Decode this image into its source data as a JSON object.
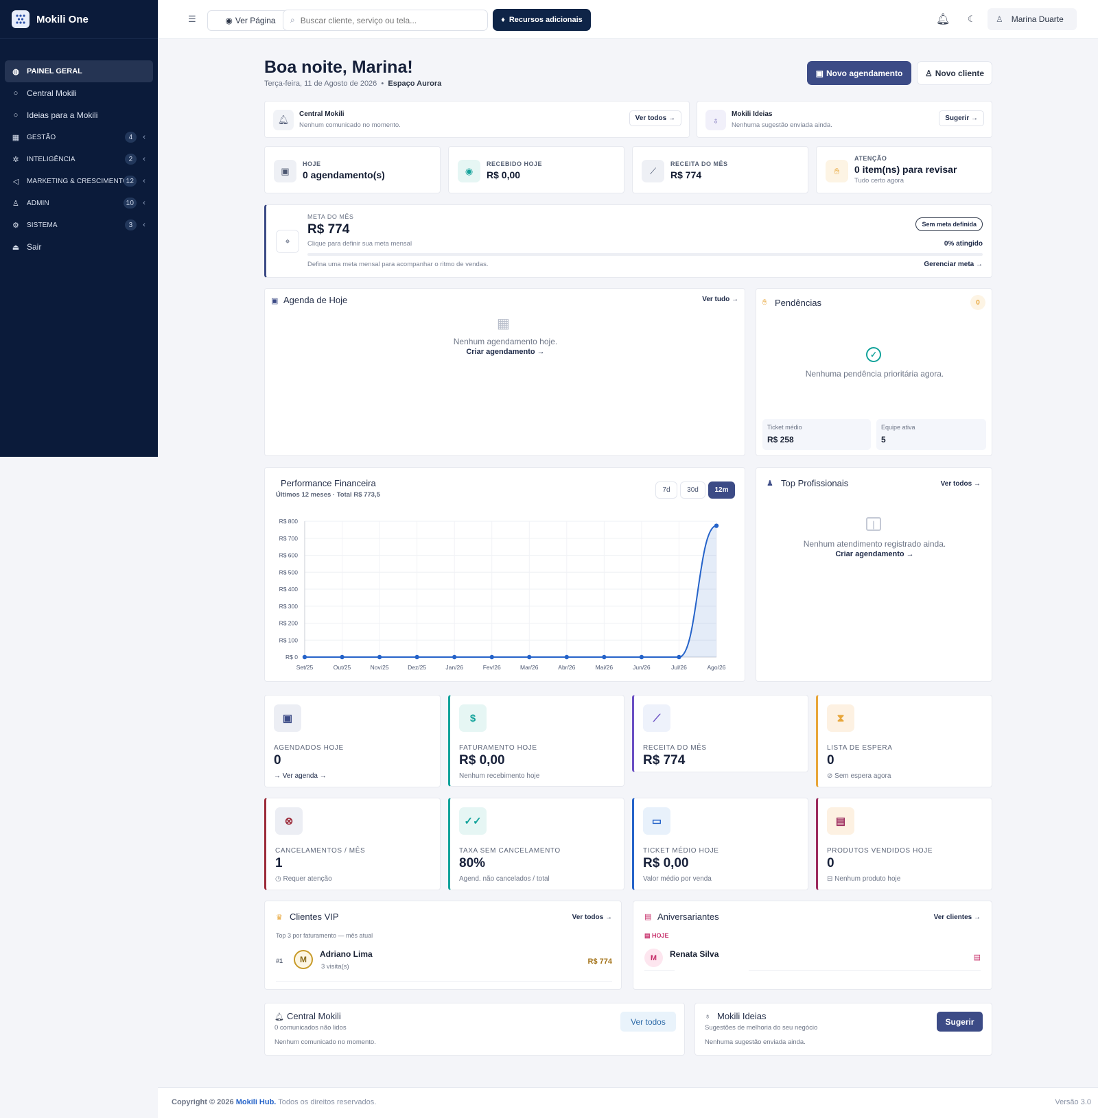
{
  "sidebar": {
    "brand": "Mokili One",
    "items": [
      {
        "label": "PAINEL GERAL"
      },
      {
        "label": "Central Mokili"
      },
      {
        "label": "Ideias para a Mokili"
      },
      {
        "label": "GESTÃO",
        "badge": "4"
      },
      {
        "label": "INTELIGÊNCIA",
        "badge": "2"
      },
      {
        "label": "MARKETING & CRESCIMENTO",
        "badge": "12"
      },
      {
        "label": "ADMIN",
        "badge": "10"
      },
      {
        "label": "SISTEMA",
        "badge": "3"
      },
      {
        "label": "Sair"
      }
    ]
  },
  "topbar": {
    "ver_pagina": "Ver Página",
    "search_placeholder": "Buscar cliente, serviço ou tela...",
    "recursos": "Recursos adicionais",
    "user_name": "Marina Duarte"
  },
  "header": {
    "greeting": "Boa noite, Marina!",
    "date": "Terça-feira, 11 de Agosto de 2026",
    "place": "Espaço Aurora",
    "btn_agendamento": "Novo agendamento",
    "btn_cliente": "Novo cliente"
  },
  "notices": {
    "central": {
      "title": "Central Mokili",
      "text": "Nenhum comunicado no momento.",
      "link": "Ver todos →"
    },
    "ideias": {
      "title": "Mokili Ideias",
      "text": "Nenhuma sugestão enviada ainda.",
      "link": "Sugerir →"
    }
  },
  "kpis": [
    {
      "label": "HOJE",
      "value": "0 agendamento(s)"
    },
    {
      "label": "RECEBIDO HOJE",
      "value": "R$ 0,00"
    },
    {
      "label": "RECEITA DO MÊS",
      "value": "R$ 774"
    },
    {
      "label": "ATENÇÃO",
      "value": "0 item(ns) para revisar",
      "note": "Tudo certo agora"
    }
  ],
  "meta": {
    "label": "META DO MÊS",
    "value": "R$ 774",
    "hint": "Clique para definir sua meta mensal",
    "badge": "Sem meta definida",
    "percent_text": "0% atingido",
    "progress": 0,
    "footer_text": "Defina uma meta mensal para acompanhar o ritmo de vendas.",
    "link": "Gerenciar meta →"
  },
  "agenda": {
    "title": "Agenda de Hoje",
    "link": "Ver tudo →",
    "empty": "Nenhum agendamento hoje.",
    "cta": "Criar agendamento →"
  },
  "pendencias": {
    "title": "Pendências",
    "count": "0",
    "empty": "Nenhuma pendência prioritária agora.",
    "ticket_label": "Ticket médio",
    "ticket_value": "R$ 258",
    "equipe_label": "Equipe ativa",
    "equipe_value": "5"
  },
  "performance": {
    "title": "Performance Financeira",
    "subtitle": "Últimos 12 meses · Total R$ 773,5",
    "ranges": [
      "7d",
      "30d",
      "12m"
    ],
    "active_range": "12m"
  },
  "chart_data": {
    "type": "area",
    "x": [
      "Set/25",
      "Out/25",
      "Nov/25",
      "Dez/25",
      "Jan/26",
      "Fev/26",
      "Mar/26",
      "Abr/26",
      "Mai/26",
      "Jun/26",
      "Jul/26",
      "Ago/26"
    ],
    "series": [
      {
        "values": [
          0,
          0,
          0,
          0,
          0,
          0,
          0,
          0,
          0,
          0,
          0,
          773.5
        ]
      }
    ],
    "y_ticks": [
      "R$ 0",
      "R$ 100",
      "R$ 200",
      "R$ 300",
      "R$ 400",
      "R$ 500",
      "R$ 600",
      "R$ 700",
      "R$ 800"
    ],
    "ylim": [
      0,
      800
    ],
    "grid": true,
    "color": "#2563c9"
  },
  "top_prof": {
    "title": "Top Profissionais",
    "link": "Ver todos →",
    "empty": "Nenhum atendimento registrado ainda.",
    "cta": "Criar agendamento →"
  },
  "stats": [
    {
      "label": "AGENDADOS HOJE",
      "value": "0",
      "note": "→ Ver agenda →",
      "color": "#3c4b86"
    },
    {
      "label": "FATURAMENTO HOJE",
      "value": "R$ 0,00",
      "note": "Nenhum recebimento hoje",
      "color": "#13a39b"
    },
    {
      "label": "RECEITA DO MÊS",
      "value": "R$ 774",
      "note": "",
      "color": "#6a4fc3"
    },
    {
      "label": "LISTA DE ESPERA",
      "value": "0",
      "note": "⊘ Sem espera agora",
      "color": "#e8a63a"
    },
    {
      "label": "CANCELAMENTOS / MÊS",
      "value": "1",
      "note": "◷ Requer atenção",
      "color": "#9c2b3a"
    },
    {
      "label": "TAXA SEM CANCELAMENTO",
      "value": "80%",
      "note": "Agend. não cancelados / total",
      "color": "#13a39b"
    },
    {
      "label": "TICKET MÉDIO HOJE",
      "value": "R$ 0,00",
      "note": "Valor médio por venda",
      "color": "#2563c9"
    },
    {
      "label": "PRODUTOS VENDIDOS HOJE",
      "value": "0",
      "note": "⊟ Nenhum produto hoje",
      "color": "#9c2b5e"
    }
  ],
  "vip": {
    "title": "Clientes VIP",
    "link": "Ver todos →",
    "subtitle": "Top 3 por faturamento — mês atual",
    "rows": [
      {
        "rank": "#1",
        "initial": "M",
        "name": "Adriano Lima",
        "visits": "3 visita(s)",
        "value": "R$ 774"
      }
    ]
  },
  "aniversariantes": {
    "title": "Aniversariantes",
    "link": "Ver clientes →",
    "tag": "HOJE",
    "rows": [
      {
        "initial": "M",
        "name": "Renata Silva"
      }
    ]
  },
  "bottom": {
    "central": {
      "title": "Central Mokili",
      "sub": "0 comunicados não lidos",
      "text": "Nenhum comunicado no momento.",
      "btn": "Ver todos"
    },
    "ideias": {
      "title": "Mokili Ideias",
      "sub": "Sugestões de melhoria do seu negócio",
      "text": "Nenhuma sugestão enviada ainda.",
      "btn": "Sugerir"
    }
  },
  "footer": {
    "copyright": "Copyright © 2026",
    "brand": "Mokili Hub.",
    "rights": "Todos os direitos reservados.",
    "version": "Versão 3.0"
  }
}
